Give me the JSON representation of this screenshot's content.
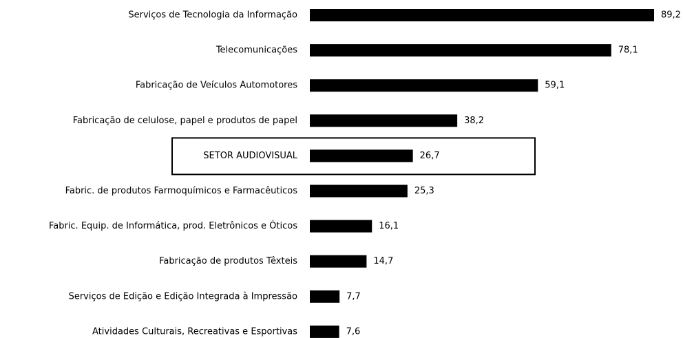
{
  "chart_data": {
    "type": "barh",
    "categories": [
      "Serviços de Tecnologia da Informação",
      "Telecomunicações",
      "Fabricação de Veículos Automotores",
      "Fabricação de celulose, papel e produtos de papel",
      "SETOR AUDIOVISUAL",
      "Fabric. de produtos Farmoquímicos e Farmacêuticos",
      "Fabric. Equip. de Informática, prod. Eletrônicos e Óticos",
      "Fabricação de produtos Têxteis",
      "Serviços de Edição e Edição Integrada à Impressão",
      "Atividades Culturais, Recreativas e Esportivas"
    ],
    "values": [
      89.2,
      78.1,
      59.1,
      38.2,
      26.7,
      25.3,
      16.1,
      14.7,
      7.7,
      7.6
    ],
    "value_labels": [
      "89,2",
      "78,1",
      "59,1",
      "38,2",
      "26,7",
      "25,3",
      "16,1",
      "14,7",
      "7,7",
      "7,6"
    ],
    "color": "#000000",
    "highlight": "SETOR AUDIOVISUAL"
  }
}
